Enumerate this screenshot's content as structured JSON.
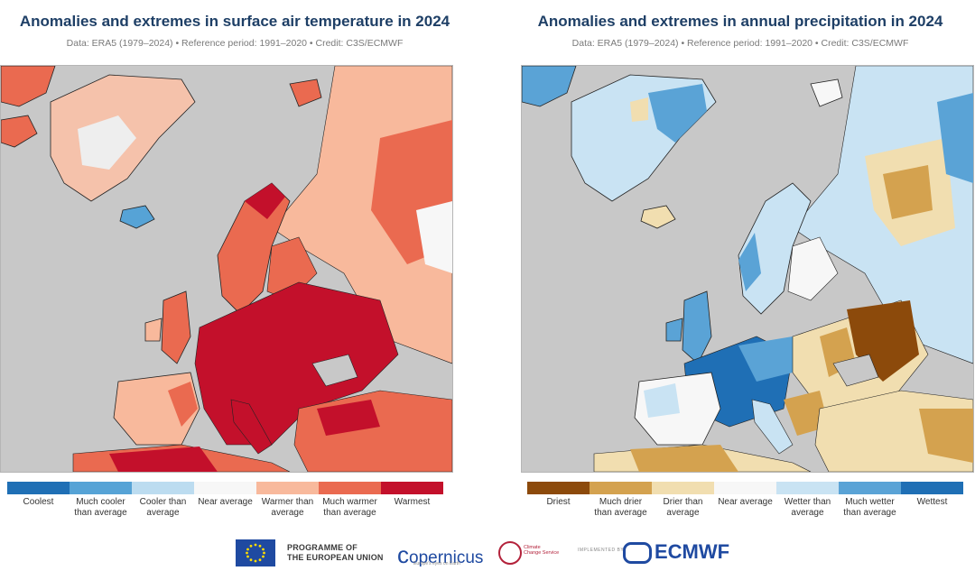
{
  "left": {
    "title": "Anomalies and extremes in surface air temperature in 2024",
    "subtitle": "Data: ERA5 (1979–2024) • Reference period: 1991–2020 • Credit: C3S/ECMWF",
    "legend": [
      {
        "label": "Coolest",
        "color": "#1f6fb5"
      },
      {
        "label": "Much cooler than average",
        "color": "#56a3d6"
      },
      {
        "label": "Cooler than average",
        "color": "#bcdcf0"
      },
      {
        "label": "Near average",
        "color": "#f7f7f7"
      },
      {
        "label": "Warmer than average",
        "color": "#f8b99c"
      },
      {
        "label": "Much warmer than average",
        "color": "#ea6a50"
      },
      {
        "label": "Warmest",
        "color": "#c3102b"
      }
    ]
  },
  "right": {
    "title": "Anomalies and extremes in annual precipitation in 2024",
    "subtitle": "Data: ERA5 (1979–2024) • Reference period: 1991–2020 • Credit: C3S/ECMWF",
    "legend": [
      {
        "label": "Driest",
        "color": "#8c4a0b"
      },
      {
        "label": "Much drier than average",
        "color": "#d4a24f"
      },
      {
        "label": "Drier than average",
        "color": "#f1deb0"
      },
      {
        "label": "Near average",
        "color": "#f7f7f7"
      },
      {
        "label": "Wetter than average",
        "color": "#c9e3f3"
      },
      {
        "label": "Much wetter than average",
        "color": "#5aa3d6"
      },
      {
        "label": "Wettest",
        "color": "#1f6fb5"
      }
    ]
  },
  "footer": {
    "eu_line1": "PROGRAMME OF",
    "eu_line2": "THE EUROPEAN UNION",
    "copernicus": "opernicus",
    "copernicus_sub": "Europe's eyes on Earth",
    "c3s_line1": "Climate",
    "c3s_line2": "Change Service",
    "implemented_by": "IMPLEMENTED BY",
    "ecmwf": "ECMWF"
  },
  "colors": {
    "sea": "#c8c8c8",
    "title": "#1e3f66"
  }
}
